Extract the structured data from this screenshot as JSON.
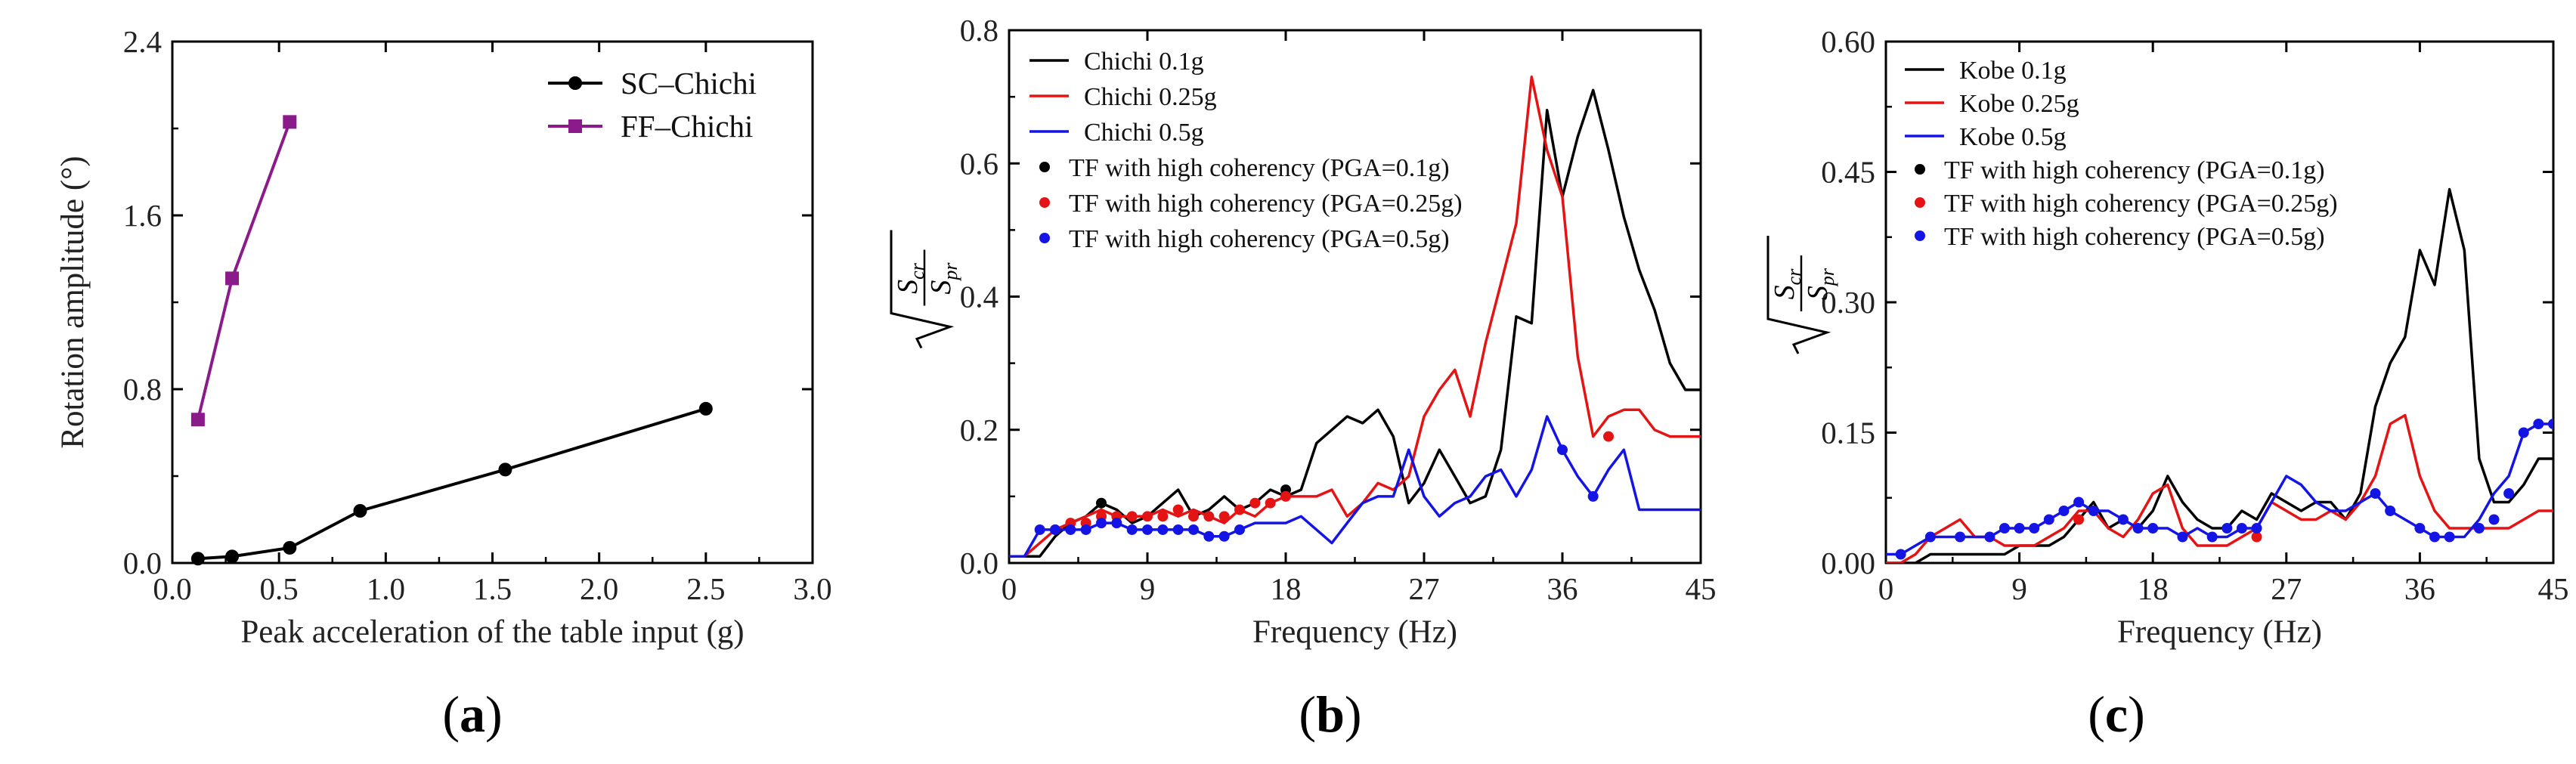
{
  "panels": [
    {
      "label_open": "(",
      "label_letter": "a",
      "label_close": ")"
    },
    {
      "label_open": "(",
      "label_letter": "b",
      "label_close": ")"
    },
    {
      "label_open": "(",
      "label_letter": "c",
      "label_close": ")"
    }
  ],
  "chart_data": [
    {
      "type": "line",
      "xlabel": "Peak acceleration of the table input (g)",
      "ylabel": "Rotation amplitude (°)",
      "xlim": [
        0,
        3.0
      ],
      "ylim": [
        0,
        2.4
      ],
      "xticks": [
        "0.0",
        "0.5",
        "1.0",
        "1.5",
        "2.0",
        "2.5",
        "3.0"
      ],
      "yticks": [
        "0.0",
        "0.8",
        "1.6",
        "2.4"
      ],
      "legend_position": "top-right",
      "series": [
        {
          "name": "SC–Chichi",
          "color": "#000000",
          "marker": "circle",
          "x": [
            0.12,
            0.28,
            0.55,
            0.88,
            1.56,
            2.5
          ],
          "y": [
            0.02,
            0.03,
            0.07,
            0.24,
            0.43,
            0.71
          ]
        },
        {
          "name": "FF–Chichi",
          "color": "#8b1a8b",
          "marker": "square",
          "x": [
            0.12,
            0.28,
            0.55
          ],
          "y": [
            0.66,
            1.31,
            2.03
          ]
        }
      ]
    },
    {
      "type": "line",
      "xlabel": "Frequency (Hz)",
      "ylabel": "sqrt(S_cr / S_pr)",
      "xlim": [
        0,
        45
      ],
      "ylim": [
        0,
        0.8
      ],
      "xticks": [
        "0",
        "9",
        "18",
        "27",
        "36",
        "45"
      ],
      "yticks": [
        "0.0",
        "0.2",
        "0.4",
        "0.6",
        "0.8"
      ],
      "legend_position": "top-left",
      "series": [
        {
          "name": "Chichi 0.1g",
          "color": "#000000",
          "x": [
            0,
            1,
            2,
            3,
            4,
            5,
            6,
            7,
            8,
            9,
            10,
            11,
            12,
            13,
            14,
            15,
            16,
            17,
            18,
            19,
            20,
            21,
            22,
            23,
            24,
            25,
            26,
            27,
            28,
            29,
            30,
            31,
            32,
            33,
            34,
            35,
            36,
            37,
            38,
            39,
            40,
            41,
            42,
            43,
            44,
            45
          ],
          "y": [
            0.01,
            0.01,
            0.01,
            0.04,
            0.06,
            0.07,
            0.09,
            0.08,
            0.06,
            0.07,
            0.09,
            0.11,
            0.07,
            0.08,
            0.1,
            0.08,
            0.09,
            0.11,
            0.1,
            0.11,
            0.18,
            0.2,
            0.22,
            0.21,
            0.23,
            0.19,
            0.09,
            0.12,
            0.17,
            0.13,
            0.09,
            0.1,
            0.17,
            0.37,
            0.36,
            0.68,
            0.55,
            0.64,
            0.71,
            0.62,
            0.52,
            0.44,
            0.38,
            0.3,
            0.26,
            0.26
          ]
        },
        {
          "name": "Chichi 0.25g",
          "color": "#e51414",
          "x": [
            0,
            1,
            2,
            3,
            4,
            5,
            6,
            7,
            8,
            9,
            10,
            11,
            12,
            13,
            14,
            15,
            16,
            17,
            18,
            19,
            20,
            21,
            22,
            23,
            24,
            25,
            26,
            27,
            28,
            29,
            30,
            31,
            32,
            33,
            34,
            35,
            36,
            37,
            38,
            39,
            40,
            41,
            42,
            43,
            44,
            45
          ],
          "y": [
            0.01,
            0.01,
            0.03,
            0.05,
            0.06,
            0.07,
            0.08,
            0.07,
            0.07,
            0.07,
            0.08,
            0.07,
            0.08,
            0.07,
            0.06,
            0.08,
            0.07,
            0.09,
            0.1,
            0.1,
            0.1,
            0.11,
            0.07,
            0.09,
            0.12,
            0.11,
            0.13,
            0.22,
            0.26,
            0.29,
            0.22,
            0.33,
            0.42,
            0.51,
            0.73,
            0.62,
            0.55,
            0.31,
            0.19,
            0.22,
            0.23,
            0.23,
            0.2,
            0.19,
            0.19,
            0.19
          ]
        },
        {
          "name": "Chichi 0.5g",
          "color": "#1414e5",
          "x": [
            0,
            1,
            2,
            3,
            4,
            5,
            6,
            7,
            8,
            9,
            10,
            11,
            12,
            13,
            14,
            15,
            16,
            17,
            18,
            19,
            20,
            21,
            22,
            23,
            24,
            25,
            26,
            27,
            28,
            29,
            30,
            31,
            32,
            33,
            34,
            35,
            36,
            37,
            38,
            39,
            40,
            41,
            42,
            43,
            44,
            45
          ],
          "y": [
            0.01,
            0.01,
            0.05,
            0.05,
            0.05,
            0.05,
            0.06,
            0.06,
            0.05,
            0.05,
            0.05,
            0.05,
            0.05,
            0.04,
            0.04,
            0.05,
            0.06,
            0.06,
            0.06,
            0.07,
            0.05,
            0.03,
            0.06,
            0.09,
            0.1,
            0.1,
            0.17,
            0.1,
            0.07,
            0.09,
            0.1,
            0.13,
            0.14,
            0.1,
            0.14,
            0.22,
            0.17,
            0.13,
            0.1,
            0.14,
            0.17,
            0.08,
            0.08,
            0.08,
            0.08,
            0.08
          ]
        },
        {
          "name": "TF with high coherency (PGA=0.1g)",
          "color": "#000000",
          "marker": "dot",
          "x": [
            6,
            18
          ],
          "y": [
            0.09,
            0.11
          ]
        },
        {
          "name": "TF with high coherency (PGA=0.25g)",
          "color": "#e51414",
          "marker": "dot",
          "x": [
            3,
            4,
            5,
            6,
            7,
            8,
            9,
            10,
            11,
            12,
            13,
            14,
            15,
            16,
            17,
            18,
            39
          ],
          "y": [
            0.05,
            0.06,
            0.06,
            0.07,
            0.07,
            0.07,
            0.07,
            0.07,
            0.08,
            0.07,
            0.07,
            0.07,
            0.08,
            0.09,
            0.09,
            0.1,
            0.19
          ]
        },
        {
          "name": "TF with high coherency (PGA=0.5g)",
          "color": "#1414e5",
          "marker": "dot",
          "x": [
            2,
            3,
            4,
            5,
            6,
            7,
            8,
            9,
            10,
            11,
            12,
            13,
            14,
            15,
            36,
            38
          ],
          "y": [
            0.05,
            0.05,
            0.05,
            0.05,
            0.06,
            0.06,
            0.05,
            0.05,
            0.05,
            0.05,
            0.05,
            0.04,
            0.04,
            0.05,
            0.17,
            0.1
          ]
        }
      ]
    },
    {
      "type": "line",
      "xlabel": "Frequency (Hz)",
      "ylabel": "sqrt(S_cr / S_pr)",
      "xlim": [
        0,
        45
      ],
      "ylim": [
        0,
        0.6
      ],
      "xticks": [
        "0",
        "9",
        "18",
        "27",
        "36",
        "45"
      ],
      "yticks": [
        "0.00",
        "0.15",
        "0.30",
        "0.45",
        "0.60"
      ],
      "legend_position": "top-left",
      "series": [
        {
          "name": "Kobe 0.1g",
          "color": "#000000",
          "x": [
            0,
            1,
            2,
            3,
            4,
            5,
            6,
            7,
            8,
            9,
            10,
            11,
            12,
            13,
            14,
            15,
            16,
            17,
            18,
            19,
            20,
            21,
            22,
            23,
            24,
            25,
            26,
            27,
            28,
            29,
            30,
            31,
            32,
            33,
            34,
            35,
            36,
            37,
            38,
            39,
            40,
            41,
            42,
            43,
            44,
            45
          ],
          "y": [
            0.0,
            0.0,
            0.0,
            0.01,
            0.01,
            0.01,
            0.01,
            0.01,
            0.01,
            0.02,
            0.02,
            0.02,
            0.03,
            0.05,
            0.07,
            0.04,
            0.05,
            0.04,
            0.06,
            0.1,
            0.07,
            0.05,
            0.04,
            0.04,
            0.06,
            0.05,
            0.08,
            0.07,
            0.06,
            0.07,
            0.07,
            0.05,
            0.08,
            0.18,
            0.23,
            0.26,
            0.36,
            0.32,
            0.43,
            0.36,
            0.12,
            0.07,
            0.07,
            0.09,
            0.12,
            0.12
          ]
        },
        {
          "name": "Kobe 0.25g",
          "color": "#e51414",
          "x": [
            0,
            1,
            2,
            3,
            4,
            5,
            6,
            7,
            8,
            9,
            10,
            11,
            12,
            13,
            14,
            15,
            16,
            17,
            18,
            19,
            20,
            21,
            22,
            23,
            24,
            25,
            26,
            27,
            28,
            29,
            30,
            31,
            32,
            33,
            34,
            35,
            36,
            37,
            38,
            39,
            40,
            41,
            42,
            43,
            44,
            45
          ],
          "y": [
            0.0,
            0.0,
            0.01,
            0.03,
            0.04,
            0.05,
            0.03,
            0.03,
            0.02,
            0.02,
            0.02,
            0.03,
            0.04,
            0.06,
            0.06,
            0.04,
            0.03,
            0.05,
            0.08,
            0.09,
            0.04,
            0.02,
            0.02,
            0.02,
            0.03,
            0.04,
            0.07,
            0.06,
            0.05,
            0.05,
            0.06,
            0.05,
            0.07,
            0.1,
            0.16,
            0.17,
            0.1,
            0.06,
            0.04,
            0.04,
            0.04,
            0.04,
            0.04,
            0.05,
            0.06,
            0.06
          ]
        },
        {
          "name": "Kobe 0.5g",
          "color": "#1414e5",
          "x": [
            0,
            1,
            2,
            3,
            4,
            5,
            6,
            7,
            8,
            9,
            10,
            11,
            12,
            13,
            14,
            15,
            16,
            17,
            18,
            19,
            20,
            21,
            22,
            23,
            24,
            25,
            26,
            27,
            28,
            29,
            30,
            31,
            32,
            33,
            34,
            35,
            36,
            37,
            38,
            39,
            40,
            41,
            42,
            43,
            44,
            45
          ],
          "y": [
            0.01,
            0.01,
            0.02,
            0.03,
            0.03,
            0.03,
            0.03,
            0.03,
            0.04,
            0.04,
            0.04,
            0.05,
            0.06,
            0.07,
            0.06,
            0.06,
            0.05,
            0.04,
            0.04,
            0.04,
            0.03,
            0.04,
            0.03,
            0.03,
            0.04,
            0.04,
            0.07,
            0.1,
            0.09,
            0.07,
            0.06,
            0.06,
            0.07,
            0.08,
            0.06,
            0.05,
            0.04,
            0.03,
            0.03,
            0.03,
            0.05,
            0.08,
            0.1,
            0.15,
            0.16,
            0.16
          ]
        },
        {
          "name": "TF with high coherency (PGA=0.1g)",
          "color": "#000000",
          "marker": "dot",
          "x": [],
          "y": []
        },
        {
          "name": "TF with high coherency (PGA=0.25g)",
          "color": "#e51414",
          "marker": "dot",
          "x": [
            13,
            25
          ],
          "y": [
            0.05,
            0.03
          ]
        },
        {
          "name": "TF with high coherency (PGA=0.5g)",
          "color": "#1414e5",
          "marker": "dot",
          "x": [
            1,
            3,
            5,
            7,
            8,
            9,
            10,
            11,
            12,
            13,
            14,
            16,
            17,
            18,
            20,
            22,
            23,
            24,
            25,
            33,
            34,
            36,
            37,
            38,
            40,
            41,
            42,
            43,
            44,
            45
          ],
          "y": [
            0.01,
            0.03,
            0.03,
            0.03,
            0.04,
            0.04,
            0.04,
            0.05,
            0.06,
            0.07,
            0.06,
            0.05,
            0.04,
            0.04,
            0.03,
            0.03,
            0.04,
            0.04,
            0.04,
            0.08,
            0.06,
            0.04,
            0.03,
            0.03,
            0.04,
            0.05,
            0.08,
            0.15,
            0.16,
            0.16
          ]
        }
      ]
    }
  ]
}
